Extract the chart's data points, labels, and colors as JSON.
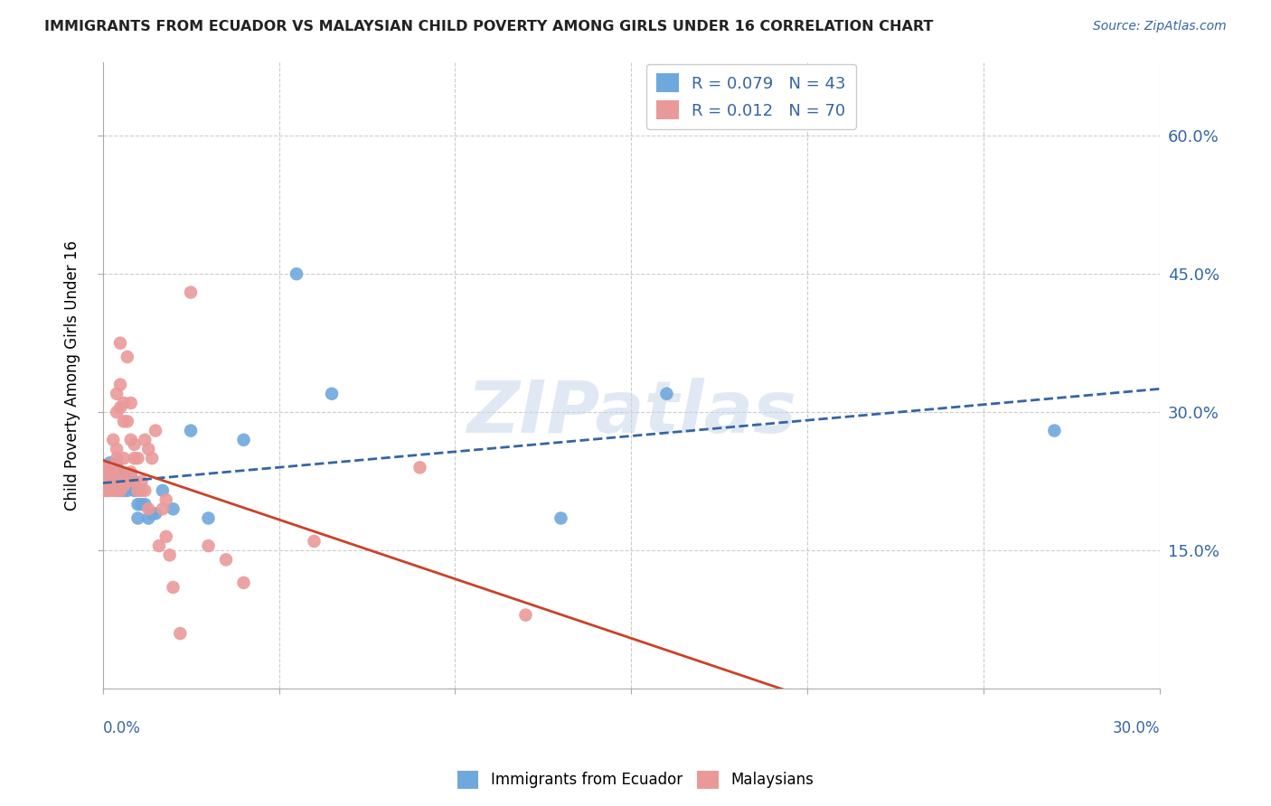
{
  "title": "IMMIGRANTS FROM ECUADOR VS MALAYSIAN CHILD POVERTY AMONG GIRLS UNDER 16 CORRELATION CHART",
  "source": "Source: ZipAtlas.com",
  "ylabel": "Child Poverty Among Girls Under 16",
  "ytick_labels": [
    "60.0%",
    "45.0%",
    "30.0%",
    "15.0%"
  ],
  "ytick_values": [
    0.6,
    0.45,
    0.3,
    0.15
  ],
  "xlim": [
    0.0,
    0.3
  ],
  "ylim": [
    0.0,
    0.68
  ],
  "blue_color": "#6fa8dc",
  "pink_color": "#ea9999",
  "blue_line_color": "#3465a4",
  "pink_line_color": "#cc4125",
  "legend_R_blue": "R = 0.079",
  "legend_N_blue": "N = 43",
  "legend_R_pink": "R = 0.012",
  "legend_N_pink": "N = 70",
  "watermark": "ZIPatlas",
  "blue_scatter": {
    "x": [
      0.001,
      0.001,
      0.001,
      0.002,
      0.002,
      0.002,
      0.003,
      0.003,
      0.003,
      0.003,
      0.004,
      0.004,
      0.004,
      0.004,
      0.005,
      0.005,
      0.005,
      0.005,
      0.006,
      0.006,
      0.007,
      0.007,
      0.008,
      0.008,
      0.009,
      0.009,
      0.01,
      0.01,
      0.011,
      0.012,
      0.013,
      0.014,
      0.015,
      0.017,
      0.02,
      0.025,
      0.03,
      0.04,
      0.055,
      0.065,
      0.13,
      0.16,
      0.27
    ],
    "y": [
      0.22,
      0.23,
      0.24,
      0.22,
      0.23,
      0.245,
      0.22,
      0.225,
      0.235,
      0.24,
      0.215,
      0.225,
      0.235,
      0.245,
      0.215,
      0.225,
      0.235,
      0.22,
      0.215,
      0.23,
      0.215,
      0.225,
      0.22,
      0.23,
      0.215,
      0.22,
      0.185,
      0.2,
      0.2,
      0.2,
      0.185,
      0.19,
      0.19,
      0.215,
      0.195,
      0.28,
      0.185,
      0.27,
      0.45,
      0.32,
      0.185,
      0.32,
      0.28
    ]
  },
  "pink_scatter": {
    "x": [
      0.001,
      0.001,
      0.001,
      0.001,
      0.001,
      0.001,
      0.001,
      0.002,
      0.002,
      0.002,
      0.002,
      0.002,
      0.002,
      0.002,
      0.003,
      0.003,
      0.003,
      0.003,
      0.003,
      0.003,
      0.004,
      0.004,
      0.004,
      0.004,
      0.004,
      0.004,
      0.005,
      0.005,
      0.005,
      0.005,
      0.005,
      0.005,
      0.006,
      0.006,
      0.006,
      0.006,
      0.006,
      0.007,
      0.007,
      0.007,
      0.008,
      0.008,
      0.008,
      0.009,
      0.009,
      0.009,
      0.01,
      0.01,
      0.011,
      0.011,
      0.012,
      0.012,
      0.013,
      0.013,
      0.014,
      0.015,
      0.016,
      0.017,
      0.018,
      0.018,
      0.019,
      0.02,
      0.022,
      0.025,
      0.03,
      0.035,
      0.04,
      0.06,
      0.09,
      0.12
    ],
    "y": [
      0.215,
      0.22,
      0.225,
      0.23,
      0.235,
      0.24,
      0.215,
      0.215,
      0.22,
      0.225,
      0.23,
      0.235,
      0.24,
      0.22,
      0.215,
      0.22,
      0.225,
      0.23,
      0.235,
      0.27,
      0.215,
      0.22,
      0.25,
      0.26,
      0.3,
      0.32,
      0.215,
      0.225,
      0.235,
      0.305,
      0.33,
      0.375,
      0.22,
      0.225,
      0.25,
      0.29,
      0.31,
      0.225,
      0.29,
      0.36,
      0.235,
      0.27,
      0.31,
      0.225,
      0.25,
      0.265,
      0.215,
      0.25,
      0.215,
      0.225,
      0.215,
      0.27,
      0.195,
      0.26,
      0.25,
      0.28,
      0.155,
      0.195,
      0.165,
      0.205,
      0.145,
      0.11,
      0.06,
      0.43,
      0.155,
      0.14,
      0.115,
      0.16,
      0.24,
      0.08
    ]
  }
}
